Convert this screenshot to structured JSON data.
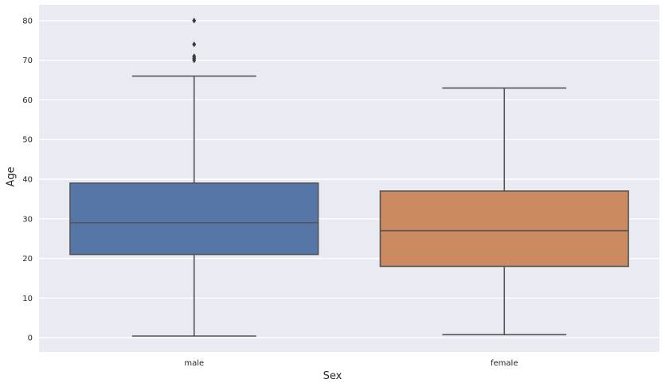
{
  "chart_data": {
    "type": "boxplot",
    "title": "",
    "xlabel": "Sex",
    "ylabel": "Age",
    "categories": [
      "male",
      "female"
    ],
    "ylim": [
      -3.6,
      84.0
    ],
    "yticks": [
      0,
      10,
      20,
      30,
      40,
      50,
      60,
      70,
      80
    ],
    "grid": true,
    "legend": "none",
    "boxes": [
      {
        "category": "male",
        "whisker_low": 0.42,
        "q1": 21,
        "median": 29,
        "q3": 39,
        "whisker_high": 66,
        "outliers": [
          70,
          70.5,
          71,
          74,
          80
        ],
        "fill": "#5676A8"
      },
      {
        "category": "female",
        "whisker_low": 0.75,
        "q1": 18,
        "median": 27,
        "q3": 37,
        "whisker_high": 63,
        "outliers": [],
        "fill": "#CC8A60"
      }
    ],
    "colors": {
      "figure_bg": "#FFFFFF",
      "plot_bg": "#EAEAF2",
      "gridline": "#FFFFFF",
      "box_edge": "#555555",
      "whisker": "#555555",
      "outlier": "#3C3C3C",
      "tick_text": "#262626"
    }
  }
}
